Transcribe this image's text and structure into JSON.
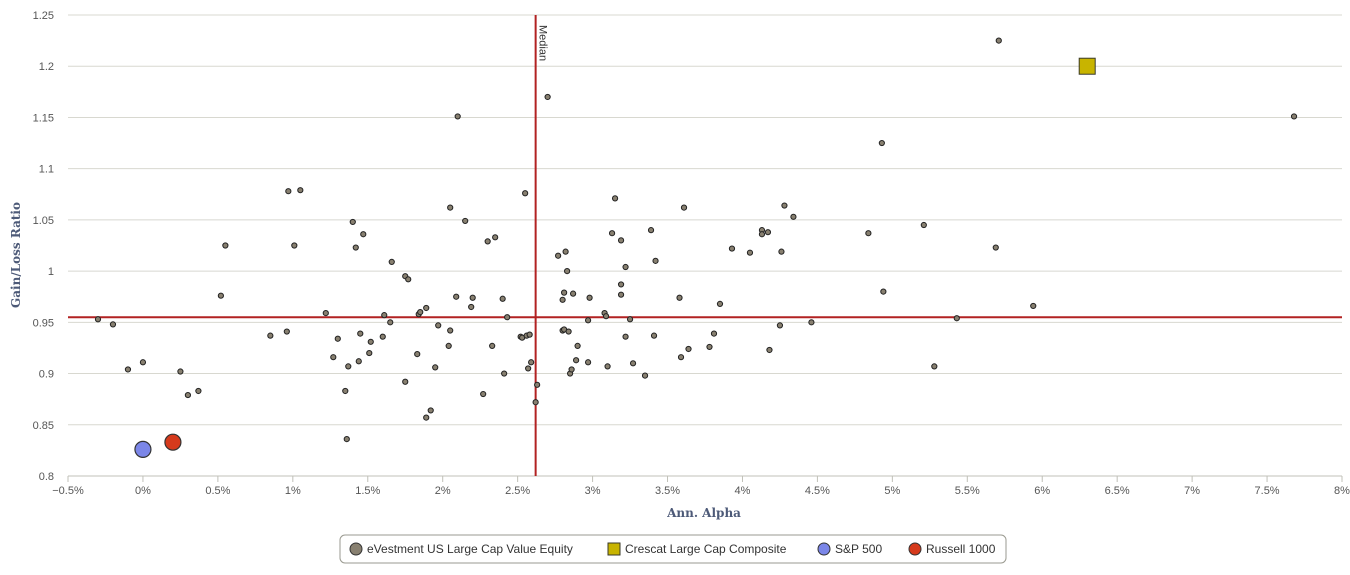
{
  "chart_data": {
    "type": "scatter",
    "title": "",
    "xlabel": "Ann. Alpha",
    "ylabel": "Gain/Loss Ratio",
    "xlim": [
      -0.5,
      8
    ],
    "ylim": [
      0.8,
      1.25
    ],
    "x_ticks": [
      -0.5,
      0,
      0.5,
      1,
      1.5,
      2,
      2.5,
      3,
      3.5,
      4,
      4.5,
      5,
      5.5,
      6,
      6.5,
      7,
      7.5,
      8
    ],
    "x_tick_labels": [
      "−0.5%",
      "0%",
      "0.5%",
      "1%",
      "1.5%",
      "2%",
      "2.5%",
      "3%",
      "3.5%",
      "4%",
      "4.5%",
      "5%",
      "5.5%",
      "6%",
      "6.5%",
      "7%",
      "7.5%",
      "8%"
    ],
    "y_ticks": [
      0.8,
      0.85,
      0.9,
      0.95,
      1,
      1.05,
      1.1,
      1.15,
      1.2,
      1.25
    ],
    "y_tick_labels": [
      "0.8",
      "0.85",
      "0.9",
      "0.95",
      "1",
      "1.05",
      "1.1",
      "1.15",
      "1.2",
      "1.25"
    ],
    "grid": "horizontal",
    "legend_position": "bottom-center",
    "reference_lines": {
      "vertical": {
        "x": 2.62,
        "label": "Median",
        "color": "#b22222"
      },
      "horizontal": {
        "y": 0.955,
        "color": "#b22222"
      }
    },
    "series": [
      {
        "name": "eVestment US Large Cap Value Equity",
        "marker": "circle-small",
        "color": "#888070",
        "points": [
          [
            -0.3,
            0.953
          ],
          [
            -0.2,
            0.948
          ],
          [
            -0.1,
            0.904
          ],
          [
            0,
            0.911
          ],
          [
            0.25,
            0.902
          ],
          [
            0.3,
            0.879
          ],
          [
            0.37,
            0.883
          ],
          [
            0.52,
            0.976
          ],
          [
            0.55,
            1.025
          ],
          [
            0.85,
            0.937
          ],
          [
            0.96,
            0.941
          ],
          [
            0.97,
            1.078
          ],
          [
            1.01,
            1.025
          ],
          [
            1.05,
            1.079
          ],
          [
            1.22,
            0.959
          ],
          [
            1.27,
            0.916
          ],
          [
            1.3,
            0.934
          ],
          [
            1.35,
            0.883
          ],
          [
            1.36,
            0.836
          ],
          [
            1.37,
            0.907
          ],
          [
            1.4,
            1.048
          ],
          [
            1.42,
            1.023
          ],
          [
            1.44,
            0.912
          ],
          [
            1.45,
            0.939
          ],
          [
            1.47,
            1.036
          ],
          [
            1.51,
            0.92
          ],
          [
            1.52,
            0.931
          ],
          [
            1.6,
            0.936
          ],
          [
            1.61,
            0.957
          ],
          [
            1.65,
            0.95
          ],
          [
            1.66,
            1.009
          ],
          [
            1.75,
            0.995
          ],
          [
            1.75,
            0.892
          ],
          [
            1.77,
            0.992
          ],
          [
            1.83,
            0.919
          ],
          [
            1.84,
            0.958
          ],
          [
            1.85,
            0.96
          ],
          [
            1.89,
            0.964
          ],
          [
            1.89,
            0.857
          ],
          [
            1.92,
            0.864
          ],
          [
            1.95,
            0.906
          ],
          [
            1.97,
            0.947
          ],
          [
            2.04,
            0.927
          ],
          [
            2.05,
            1.062
          ],
          [
            2.05,
            0.942
          ],
          [
            2.09,
            0.975
          ],
          [
            2.1,
            1.151
          ],
          [
            2.15,
            1.049
          ],
          [
            2.19,
            0.965
          ],
          [
            2.2,
            0.974
          ],
          [
            2.27,
            0.88
          ],
          [
            2.3,
            1.029
          ],
          [
            2.33,
            0.927
          ],
          [
            2.35,
            1.033
          ],
          [
            2.4,
            0.973
          ],
          [
            2.41,
            0.9
          ],
          [
            2.43,
            0.955
          ],
          [
            2.52,
            0.936
          ],
          [
            2.53,
            0.935
          ],
          [
            2.55,
            1.076
          ],
          [
            2.56,
            0.937
          ],
          [
            2.57,
            0.905
          ],
          [
            2.58,
            0.938
          ],
          [
            2.59,
            0.911
          ],
          [
            2.62,
            0.872
          ],
          [
            2.63,
            0.889
          ],
          [
            2.7,
            1.17
          ],
          [
            2.77,
            1.015
          ],
          [
            2.8,
            0.942
          ],
          [
            2.8,
            0.972
          ],
          [
            2.81,
            0.943
          ],
          [
            2.81,
            0.979
          ],
          [
            2.82,
            1.019
          ],
          [
            2.83,
            1
          ],
          [
            2.84,
            0.941
          ],
          [
            2.85,
            0.9
          ],
          [
            2.86,
            0.904
          ],
          [
            2.87,
            0.978
          ],
          [
            2.89,
            0.913
          ],
          [
            2.9,
            0.927
          ],
          [
            2.97,
            0.952
          ],
          [
            2.97,
            0.911
          ],
          [
            2.98,
            0.974
          ],
          [
            3.08,
            0.959
          ],
          [
            3.09,
            0.956
          ],
          [
            3.1,
            0.907
          ],
          [
            3.13,
            1.037
          ],
          [
            3.15,
            1.071
          ],
          [
            3.19,
            0.977
          ],
          [
            3.19,
            0.987
          ],
          [
            3.19,
            1.03
          ],
          [
            3.22,
            0.936
          ],
          [
            3.22,
            1.004
          ],
          [
            3.25,
            0.953
          ],
          [
            3.27,
            0.91
          ],
          [
            3.35,
            0.898
          ],
          [
            3.39,
            1.04
          ],
          [
            3.41,
            0.937
          ],
          [
            3.42,
            1.01
          ],
          [
            3.58,
            0.974
          ],
          [
            3.59,
            0.916
          ],
          [
            3.61,
            1.062
          ],
          [
            3.64,
            0.924
          ],
          [
            3.78,
            0.926
          ],
          [
            3.81,
            0.939
          ],
          [
            3.85,
            0.968
          ],
          [
            3.93,
            1.022
          ],
          [
            4.05,
            1.018
          ],
          [
            4.13,
            1.04
          ],
          [
            4.13,
            1.036
          ],
          [
            4.17,
            1.038
          ],
          [
            4.18,
            0.923
          ],
          [
            4.25,
            0.947
          ],
          [
            4.26,
            1.019
          ],
          [
            4.28,
            1.064
          ],
          [
            4.34,
            1.053
          ],
          [
            4.46,
            0.95
          ],
          [
            4.84,
            1.037
          ],
          [
            4.93,
            1.125
          ],
          [
            4.94,
            0.98
          ],
          [
            5.21,
            1.045
          ],
          [
            5.28,
            0.907
          ],
          [
            5.43,
            0.954
          ],
          [
            5.69,
            1.023
          ],
          [
            5.71,
            1.225
          ],
          [
            5.94,
            0.966
          ],
          [
            7.68,
            1.151
          ]
        ]
      },
      {
        "name": "Crescat Large Cap Composite",
        "marker": "square",
        "color": "#c8b400",
        "points": [
          [
            6.3,
            1.2
          ]
        ]
      },
      {
        "name": "S&P 500",
        "marker": "circle",
        "color": "#7b86e8",
        "points": [
          [
            0,
            0.826
          ]
        ]
      },
      {
        "name": "Russell 1000",
        "marker": "circle",
        "color": "#d63a1c",
        "points": [
          [
            0.2,
            0.833
          ]
        ]
      }
    ]
  }
}
